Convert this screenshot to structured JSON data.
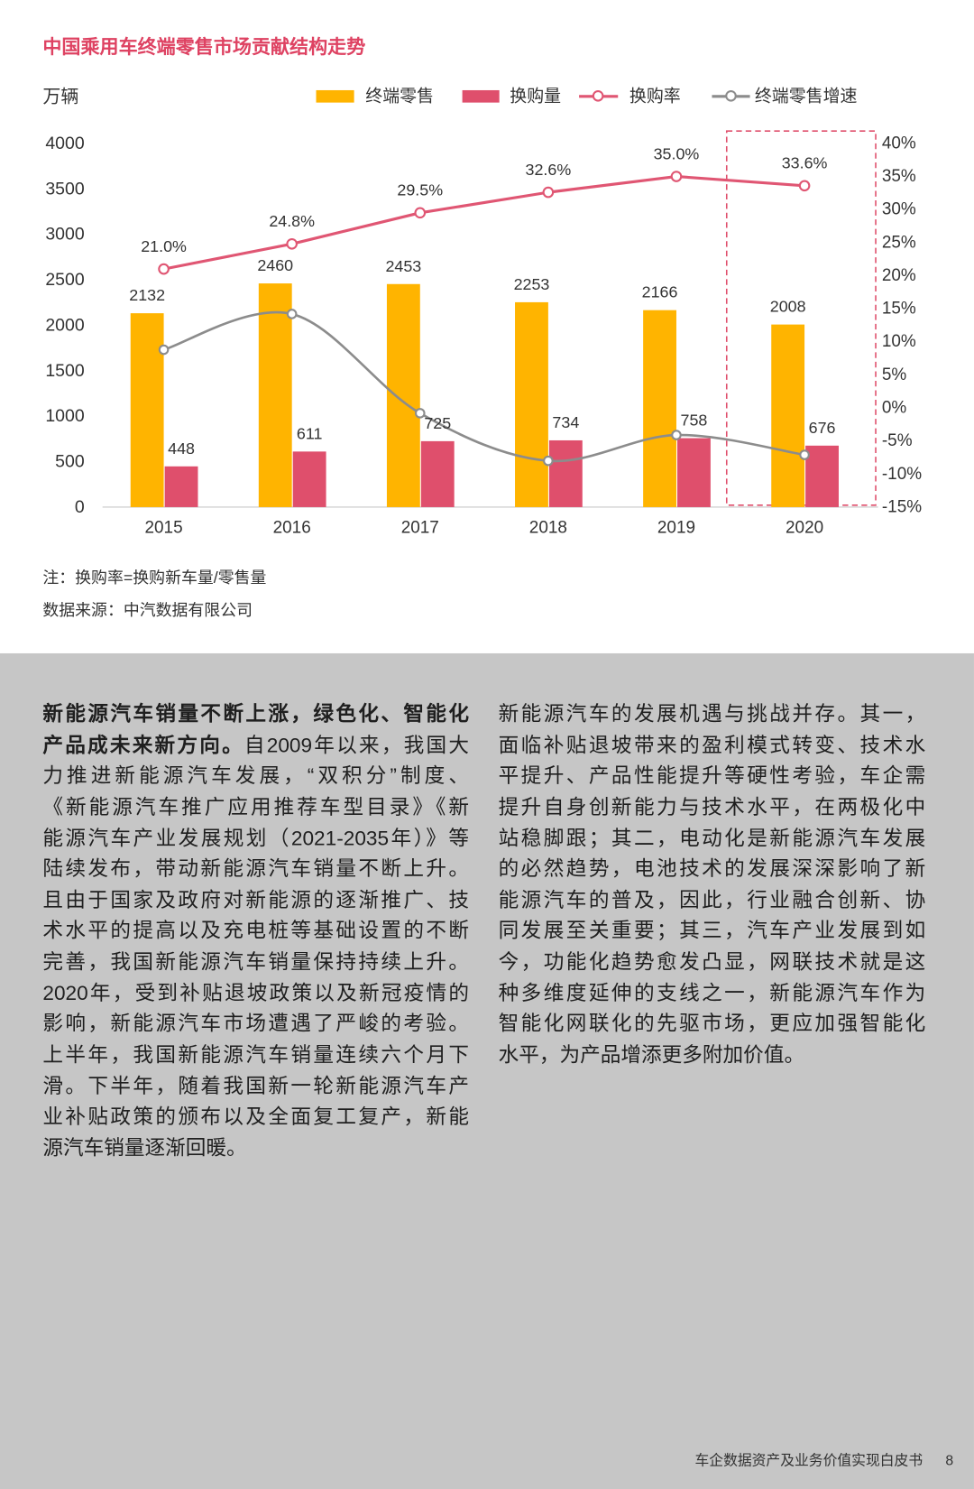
{
  "theme": {
    "accent": "#DE4262",
    "panel_bg": "#C6C6C6"
  },
  "chart_data": {
    "type": "bar",
    "title": "中国乘用车终端零售市场贡献结构走势",
    "ylabel": "万辆",
    "categories": [
      "2015",
      "2016",
      "2017",
      "2018",
      "2019",
      "2020"
    ],
    "ylim": [
      0,
      4000
    ],
    "y_ticks": [
      "0",
      "500",
      "1000",
      "1500",
      "2000",
      "2500",
      "3000",
      "3500",
      "4000"
    ],
    "y2lim": [
      -15,
      40
    ],
    "y2_ticks": [
      "-15%",
      "-10%",
      "-5%",
      "0%",
      "5%",
      "10%",
      "15%",
      "20%",
      "25%",
      "30%",
      "35%",
      "40%"
    ],
    "series": [
      {
        "name": "终端零售",
        "type": "bar",
        "color": "#FFB400",
        "values": [
          2132,
          2460,
          2453,
          2253,
          2166,
          2008
        ],
        "data_labels": true
      },
      {
        "name": "换购量",
        "type": "bar",
        "color": "#DF4F6C",
        "values": [
          448,
          611,
          725,
          734,
          758,
          676
        ],
        "data_labels": true
      },
      {
        "name": "换购率",
        "type": "line",
        "secondary_axis": true,
        "color": "#E05673",
        "values": [
          21.0,
          24.8,
          29.5,
          32.6,
          35.0,
          33.6
        ],
        "data_labels": true
      },
      {
        "name": "终端零售增速",
        "type": "line",
        "secondary_axis": true,
        "smooth": true,
        "color": "#8C8C8C",
        "values": [
          8.8,
          14.2,
          -0.8,
          -8.0,
          -4.1,
          -7.1
        ],
        "data_labels": false
      }
    ],
    "highlight": "2020",
    "legend": "top",
    "grid": false
  },
  "notes": {
    "formula": "注：换购率=换购新车量/零售量",
    "source": "数据来源：中汽数据有限公司"
  },
  "article": {
    "left": {
      "lead": [
        "新能源汽车销量不断上涨，绿色化、智能化",
        "产品成未来新方向。"
      ],
      "lines": [
        "自2009年以来，我国大",
        "力推进新能源汽车发展，“双积分”制度、",
        "《新能源汽车推广应用推荐车型目录》《新",
        "能源汽车产业发展规划（2021-2035年）》等",
        "陆续发布，带动新能源汽车销量不断上升。",
        "且由于国家及政府对新能源的逐渐推广、技",
        "术水平的提高以及充电桩等基础设置的不断",
        "完善，我国新能源汽车销量保持持续上升。",
        "2020年，受到补贴退坡政策以及新冠疫情的",
        "影响，新能源汽车市场遭遇了严峻的考验。",
        "上半年，我国新能源汽车销量连续六个月下",
        "滑。下半年，随着我国新一轮新能源汽车产",
        "业补贴政策的颁布以及全面复工复产，新能",
        "源汽车销量逐渐回暖。"
      ]
    },
    "right": {
      "lines": [
        "新能源汽车的发展机遇与挑战并存。其一，",
        "面临补贴退坡带来的盈利模式转变、技术水",
        "平提升、产品性能提升等硬性考验，车企需",
        "提升自身创新能力与技术水平，在两极化中",
        "站稳脚跟；其二，电动化是新能源汽车发展",
        "的必然趋势，电池技术的发展深深影响了新",
        "能源汽车的普及，因此，行业融合创新、协",
        "同发展至关重要；其三，汽车产业发展到如",
        "今，功能化趋势愈发凸显，网联技术就是这",
        "种多维度延伸的支线之一，新能源汽车作为",
        "智能化网联化的先驱市场，更应加强智能化",
        "水平，为产品增添更多附加价值。"
      ]
    }
  },
  "footer": {
    "title": "车企数据资产及业务价值实现白皮书",
    "page": "8"
  }
}
